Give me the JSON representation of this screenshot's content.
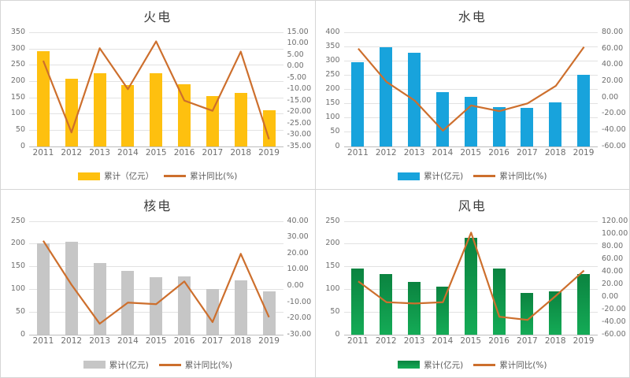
{
  "board_title": "power-investment-quadrant-charts",
  "chart_data": [
    {
      "type": "bar+line",
      "title": "火电",
      "categories": [
        "2011",
        "2012",
        "2013",
        "2014",
        "2015",
        "2016",
        "2017",
        "2018",
        "2019"
      ],
      "series": [
        {
          "name": "累计（亿元）",
          "type": "bar",
          "axis": "left",
          "values": [
            293,
            207,
            225,
            188,
            225,
            190,
            153,
            163,
            110
          ]
        },
        {
          "name": "累计同比(%)",
          "type": "line",
          "axis": "right",
          "values": [
            2.5,
            -29,
            8,
            -10,
            11,
            -15,
            -19.5,
            6.5,
            -32
          ]
        }
      ],
      "left_axis": {
        "min": 0,
        "max": 350,
        "labels": [
          "350",
          "300",
          "250",
          "200",
          "150",
          "100",
          "50",
          "0"
        ]
      },
      "right_axis": {
        "min": -35,
        "max": 15,
        "labels": [
          "15.00",
          "10.00",
          "5.00",
          "0.00",
          "-5.00",
          "-10.00",
          "-15.00",
          "-20.00",
          "-25.00",
          "-30.00",
          "-35.00"
        ]
      },
      "legend_bar": "累计（亿元）",
      "legend_line": "累计同比(%)",
      "bar_color": "#fec00f",
      "line_color": "#cd6f2d",
      "grid": true,
      "legend_position": "bottom"
    },
    {
      "type": "bar+line",
      "title": "水电",
      "categories": [
        "2011",
        "2012",
        "2013",
        "2014",
        "2015",
        "2016",
        "2017",
        "2018",
        "2019"
      ],
      "series": [
        {
          "name": "累计(亿元)",
          "type": "bar",
          "axis": "left",
          "values": [
            295,
            348,
            327,
            190,
            172,
            138,
            133,
            153,
            250
          ]
        },
        {
          "name": "累计同比(%)",
          "type": "line",
          "axis": "right",
          "values": [
            60,
            19,
            -4,
            -41,
            -10,
            -17,
            -7.5,
            14,
            62
          ]
        }
      ],
      "left_axis": {
        "min": 0,
        "max": 400,
        "labels": [
          "400",
          "350",
          "300",
          "250",
          "200",
          "150",
          "100",
          "50",
          "0"
        ]
      },
      "right_axis": {
        "min": -60,
        "max": 80,
        "labels": [
          "80.00",
          "60.00",
          "40.00",
          "20.00",
          "0.00",
          "-20.00",
          "-40.00",
          "-60.00"
        ]
      },
      "legend_bar": "累计(亿元)",
      "legend_line": "累计同比(%)",
      "bar_color": "#18a3dc",
      "line_color": "#cd6f2d",
      "grid": true,
      "legend_position": "bottom"
    },
    {
      "type": "bar+line",
      "title": "核电",
      "categories": [
        "2011",
        "2012",
        "2013",
        "2014",
        "2015",
        "2016",
        "2017",
        "2018",
        "2019"
      ],
      "series": [
        {
          "name": "累计(亿元)",
          "type": "bar",
          "axis": "left",
          "values": [
            200,
            205,
            157,
            141,
            126,
            128,
            101,
            120,
            96
          ]
        },
        {
          "name": "累计同比(%)",
          "type": "line",
          "axis": "right",
          "values": [
            28,
            1,
            -23,
            -10,
            -11,
            3,
            -22,
            20,
            -19
          ]
        }
      ],
      "left_axis": {
        "min": 0,
        "max": 250,
        "labels": [
          "250",
          "200",
          "150",
          "100",
          "50",
          "0"
        ]
      },
      "right_axis": {
        "min": -30,
        "max": 40,
        "labels": [
          "40.00",
          "30.00",
          "20.00",
          "10.00",
          "0.00",
          "-10.00",
          "-20.00",
          "-30.00"
        ]
      },
      "legend_bar": "累计(亿元)",
      "legend_line": "累计同比(%)",
      "bar_color": "#c6c6c6",
      "line_color": "#cd6f2d",
      "grid": true,
      "legend_position": "bottom"
    },
    {
      "type": "bar+line",
      "title": "风电",
      "categories": [
        "2011",
        "2012",
        "2013",
        "2014",
        "2015",
        "2016",
        "2017",
        "2018",
        "2019"
      ],
      "series": [
        {
          "name": "累计(亿元)",
          "type": "bar",
          "axis": "left",
          "values": [
            145,
            133,
            116,
            106,
            213,
            145,
            91,
            95,
            134
          ]
        },
        {
          "name": "累计同比(%)",
          "type": "line",
          "axis": "right",
          "values": [
            25,
            -8,
            -10,
            -8,
            102,
            -31,
            -36,
            2,
            42
          ]
        }
      ],
      "left_axis": {
        "min": 0,
        "max": 250,
        "labels": [
          "250",
          "200",
          "150",
          "100",
          "50",
          "0"
        ]
      },
      "right_axis": {
        "min": -60,
        "max": 120,
        "labels": [
          "120.00",
          "100.00",
          "80.00",
          "60.00",
          "40.00",
          "20.00",
          "0.00",
          "-20.00",
          "-40.00",
          "-60.00"
        ]
      },
      "legend_bar": "累计(亿元)",
      "legend_line": "累计同比(%)",
      "bar_color": "#12a855",
      "bar_gradient": [
        "#0b8340",
        "#14ab56"
      ],
      "line_color": "#cd6f2d",
      "grid": true,
      "legend_position": "bottom"
    }
  ]
}
